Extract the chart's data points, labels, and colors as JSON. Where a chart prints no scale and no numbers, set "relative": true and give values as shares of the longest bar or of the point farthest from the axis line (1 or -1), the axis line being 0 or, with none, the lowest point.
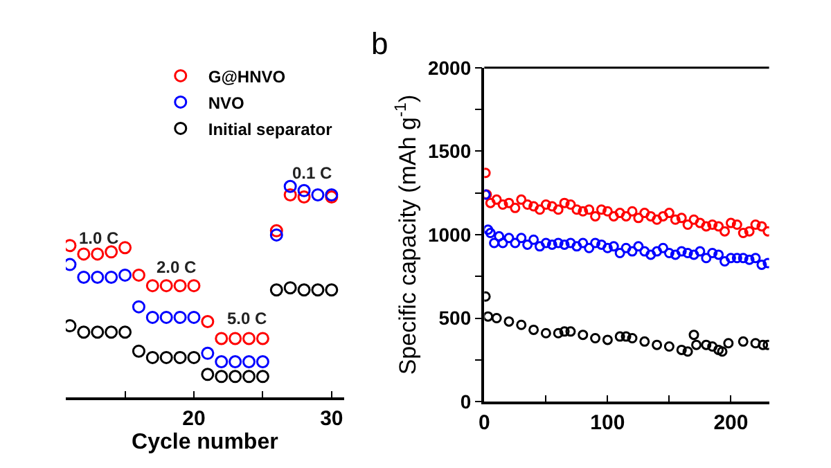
{
  "chart_data": [
    {
      "type": "scatter",
      "relative": true,
      "marker": "circle",
      "legend": "top right",
      "xlabel": "Cycle number",
      "x": [
        11,
        12,
        13,
        14,
        15,
        16,
        17,
        18,
        19,
        20,
        21,
        22,
        23,
        24,
        25,
        26,
        27,
        28,
        29,
        30
      ],
      "xlim": [
        10.7,
        30.9
      ],
      "xticks": [
        {
          "value": 15,
          "label": null
        },
        20,
        {
          "value": 25,
          "label": null
        },
        30
      ],
      "series": [
        {
          "name": "G@HNVO",
          "color": "#ff0000",
          "values": [
            0.72,
            0.68,
            0.68,
            0.69,
            0.71,
            0.58,
            0.53,
            0.53,
            0.53,
            0.53,
            0.36,
            0.28,
            0.28,
            0.28,
            0.28,
            0.79,
            0.96,
            0.95,
            null,
            0.95
          ]
        },
        {
          "name": "NVO",
          "color": "#0000ff",
          "values": [
            0.63,
            0.57,
            0.57,
            0.57,
            0.58,
            0.43,
            0.38,
            0.38,
            0.38,
            0.38,
            0.21,
            0.17,
            0.17,
            0.17,
            0.17,
            0.77,
            1,
            0.98,
            0.96,
            0.96
          ]
        },
        {
          "name": "Initial separator",
          "color": "#000000",
          "values": [
            0.34,
            0.31,
            0.31,
            0.31,
            0.31,
            0.22,
            0.19,
            0.19,
            0.19,
            0.19,
            0.11,
            0.1,
            0.1,
            0.1,
            0.1,
            0.51,
            0.52,
            0.51,
            0.51,
            0.51
          ]
        }
      ],
      "annotations": [
        "1.0 C",
        "2.0 C",
        "5.0 C",
        "0.1 C"
      ]
    },
    {
      "type": "scatter",
      "title": "b",
      "marker": "circle",
      "ylabel": "Specific capacity (mAh g$^{-1}$)",
      "xlim": [
        0,
        231
      ],
      "xticks": [
        0,
        {
          "value": 50,
          "label": null
        },
        100,
        {
          "value": 150,
          "label": null
        },
        200
      ],
      "ylim": [
        0,
        2000
      ],
      "yticks": [
        0,
        {
          "value": 250,
          "label": null
        },
        500,
        {
          "value": 750,
          "label": null
        },
        1000,
        {
          "value": 1250,
          "label": null
        },
        1500,
        {
          "value": 1750,
          "label": null
        },
        2000
      ],
      "series": [
        {
          "color": "#ff0000",
          "x": [
            1,
            2,
            5,
            10,
            15,
            20,
            25,
            30,
            35,
            40,
            45,
            50,
            55,
            60,
            65,
            70,
            75,
            80,
            85,
            90,
            95,
            100,
            105,
            110,
            115,
            120,
            125,
            130,
            135,
            140,
            145,
            150,
            155,
            160,
            165,
            170,
            175,
            180,
            185,
            190,
            195,
            200,
            205,
            210,
            215,
            220,
            225,
            230
          ],
          "values": [
            1370,
            1240,
            1190,
            1210,
            1180,
            1190,
            1160,
            1210,
            1180,
            1170,
            1150,
            1180,
            1170,
            1150,
            1190,
            1180,
            1150,
            1140,
            1150,
            1110,
            1150,
            1140,
            1110,
            1130,
            1110,
            1140,
            1100,
            1130,
            1110,
            1090,
            1110,
            1130,
            1090,
            1100,
            1060,
            1090,
            1070,
            1050,
            1060,
            1050,
            1020,
            1070,
            1060,
            1010,
            1020,
            1060,
            1050,
            1020
          ]
        },
        {
          "color": "#0000ff",
          "x": [
            1,
            3,
            5,
            8,
            12,
            15,
            20,
            25,
            30,
            35,
            40,
            45,
            50,
            55,
            60,
            65,
            70,
            75,
            80,
            85,
            90,
            95,
            100,
            105,
            110,
            115,
            120,
            125,
            130,
            135,
            140,
            145,
            150,
            155,
            160,
            165,
            170,
            175,
            180,
            185,
            190,
            195,
            200,
            205,
            210,
            215,
            220,
            225,
            230
          ],
          "values": [
            1240,
            1030,
            1010,
            950,
            990,
            950,
            980,
            950,
            980,
            940,
            970,
            930,
            950,
            940,
            950,
            940,
            950,
            930,
            950,
            920,
            950,
            940,
            920,
            930,
            890,
            920,
            900,
            930,
            900,
            880,
            900,
            920,
            890,
            880,
            900,
            890,
            880,
            900,
            860,
            890,
            880,
            840,
            860,
            860,
            860,
            850,
            860,
            820,
            830
          ]
        },
        {
          "color": "#000000",
          "x": [
            1,
            3,
            10,
            20,
            30,
            40,
            50,
            60,
            65,
            70,
            80,
            90,
            100,
            110,
            115,
            120,
            130,
            140,
            150,
            160,
            165,
            170,
            172,
            180,
            185,
            190,
            193,
            198,
            210,
            220,
            226,
            230
          ],
          "values": [
            630,
            510,
            500,
            480,
            460,
            430,
            410,
            410,
            420,
            420,
            400,
            380,
            370,
            390,
            390,
            380,
            360,
            340,
            330,
            310,
            300,
            400,
            340,
            340,
            330,
            310,
            300,
            350,
            360,
            350,
            340,
            340
          ]
        }
      ]
    }
  ]
}
